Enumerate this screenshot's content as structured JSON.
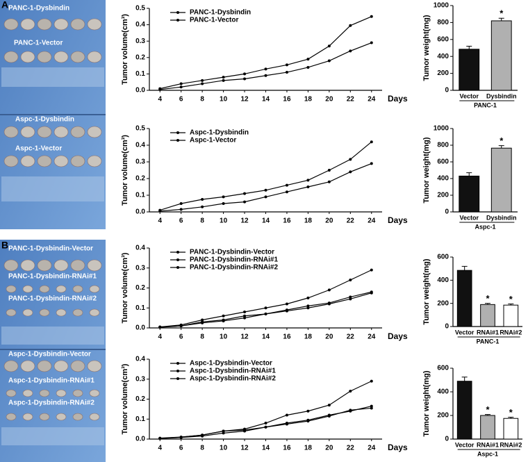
{
  "panel_labels": [
    "A",
    "B"
  ],
  "photos": [
    {
      "labels": [
        "PANC-1-Dysbindin",
        "PANC-1-Vector",
        "Aspc-1-Dysbindin",
        "Aspc-1-Vector"
      ]
    },
    {
      "labels": [
        "PANC-1-Dysbindin-Vector",
        "PANC-1-Dysbindin-RNAi#1",
        "PANC-1-Dysbindin-RNAi#2",
        "Aspc-1-Dysbindin-Vector",
        "Aspc-1-Dysbindin-RNAi#1",
        "Aspc-1-Dysbindin-RNAi#2"
      ]
    }
  ],
  "chart_data": [
    {
      "type": "line",
      "ylabel": "Tumor  volume(cm³)",
      "xlabel": "Days",
      "legend": "upper left",
      "x": [
        4,
        6,
        8,
        10,
        12,
        14,
        16,
        18,
        20,
        22,
        24
      ],
      "xlim": [
        3,
        25
      ],
      "xticks": [
        4,
        6,
        8,
        10,
        12,
        14,
        16,
        18,
        20,
        22,
        24
      ],
      "ylim": [
        0,
        0.5
      ],
      "yticks": [
        {
          "value": 0,
          "label": "0.0"
        },
        0.1,
        0.2,
        0.3,
        0.4,
        0.5
      ],
      "series": [
        {
          "name": "PANC-1-Dysbindin",
          "color": "#000000",
          "values": [
            0.01,
            0.04,
            0.06,
            0.08,
            0.1,
            0.13,
            0.155,
            0.19,
            0.27,
            0.395,
            0.45
          ]
        },
        {
          "name": "PANC-1-Vector",
          "color": "#000000",
          "values": [
            0.005,
            0.02,
            0.04,
            0.06,
            0.07,
            0.09,
            0.11,
            0.14,
            0.18,
            0.24,
            0.29
          ]
        }
      ]
    },
    {
      "type": "bar",
      "ylabel": "Tumor weight(mg)",
      "group_label": "PANC-1",
      "categories": [
        "Vector",
        "Dysbindin"
      ],
      "values": [
        485,
        820
      ],
      "errors": [
        35,
        30
      ],
      "colors": [
        "#111111",
        "#b0b0b0"
      ],
      "significance": [
        null,
        "*"
      ],
      "ylim": [
        0,
        1000
      ],
      "yticks": [
        0,
        200,
        400,
        600,
        800,
        1000
      ]
    },
    {
      "type": "line",
      "ylabel": "Tumor  volume(cm³)",
      "xlabel": "Days",
      "legend": "upper left",
      "x": [
        4,
        6,
        8,
        10,
        12,
        14,
        16,
        18,
        20,
        22,
        24
      ],
      "xlim": [
        3,
        25
      ],
      "xticks": [
        4,
        6,
        8,
        10,
        12,
        14,
        16,
        18,
        20,
        22,
        24
      ],
      "ylim": [
        0,
        0.5
      ],
      "yticks": [
        {
          "value": 0,
          "label": "0.0"
        },
        0.1,
        0.2,
        0.3,
        0.4,
        0.5
      ],
      "series": [
        {
          "name": "Aspc-1-Dysbindin",
          "color": "#000000",
          "values": [
            0.01,
            0.05,
            0.075,
            0.09,
            0.11,
            0.13,
            0.16,
            0.19,
            0.25,
            0.315,
            0.42
          ]
        },
        {
          "name": "Aspc-1-Vector",
          "color": "#000000",
          "values": [
            0.005,
            0.015,
            0.03,
            0.05,
            0.06,
            0.09,
            0.12,
            0.15,
            0.18,
            0.24,
            0.29
          ]
        }
      ]
    },
    {
      "type": "bar",
      "ylabel": "Tumor weight(mg)",
      "group_label": "Aspc-1",
      "categories": [
        "Vector",
        "Dysbindin"
      ],
      "values": [
        430,
        765
      ],
      "errors": [
        40,
        30
      ],
      "colors": [
        "#111111",
        "#b0b0b0"
      ],
      "significance": [
        null,
        "*"
      ],
      "ylim": [
        0,
        1000
      ],
      "yticks": [
        0,
        200,
        400,
        600,
        800,
        1000
      ]
    },
    {
      "type": "line",
      "ylabel": "Tumor  volume(cm³)",
      "xlabel": "Days",
      "legend": "upper left",
      "x": [
        4,
        6,
        8,
        10,
        12,
        14,
        16,
        18,
        20,
        22,
        24
      ],
      "xlim": [
        3,
        25
      ],
      "xticks": [
        4,
        6,
        8,
        10,
        12,
        14,
        16,
        18,
        20,
        22,
        24
      ],
      "ylim": [
        0,
        0.4
      ],
      "yticks": [
        {
          "value": 0,
          "label": "0.0"
        },
        0.1,
        0.2,
        0.3,
        0.4
      ],
      "series": [
        {
          "name": "PANC-1-Dysbindin-Vector",
          "color": "#000000",
          "values": [
            0.005,
            0.015,
            0.04,
            0.06,
            0.08,
            0.1,
            0.12,
            0.15,
            0.19,
            0.24,
            0.29
          ]
        },
        {
          "name": "PANC-1-Dysbindin-RNAi#1",
          "color": "#000000",
          "values": [
            0.005,
            0.01,
            0.03,
            0.04,
            0.06,
            0.07,
            0.09,
            0.11,
            0.125,
            0.155,
            0.18
          ]
        },
        {
          "name": "PANC-1-Dysbindin-RNAi#2",
          "color": "#000000",
          "values": [
            0.003,
            0.01,
            0.025,
            0.035,
            0.05,
            0.07,
            0.085,
            0.1,
            0.12,
            0.145,
            0.175
          ]
        }
      ]
    },
    {
      "type": "bar",
      "ylabel": "Tumor weight(mg)",
      "group_label": "PANC-1",
      "categories": [
        "Vector",
        "RNAi#1",
        "RNAi#2"
      ],
      "values": [
        485,
        190,
        185
      ],
      "errors": [
        35,
        10,
        10
      ],
      "colors": [
        "#111111",
        "#b0b0b0",
        "#ffffff"
      ],
      "significance": [
        null,
        "*",
        "*"
      ],
      "ylim": [
        0,
        600
      ],
      "yticks": [
        0,
        200,
        400,
        600
      ]
    },
    {
      "type": "line",
      "ylabel": "Tumor  volume(cm³)",
      "xlabel": "Days",
      "legend": "upper left",
      "x": [
        4,
        6,
        8,
        10,
        12,
        14,
        16,
        18,
        20,
        22,
        24
      ],
      "xlim": [
        3,
        25
      ],
      "xticks": [
        4,
        6,
        8,
        10,
        12,
        14,
        16,
        18,
        20,
        22,
        24
      ],
      "ylim": [
        0,
        0.4
      ],
      "yticks": [
        {
          "value": 0,
          "label": "0.0"
        },
        0.1,
        0.2,
        0.3,
        0.4
      ],
      "series": [
        {
          "name": "Aspc-1-Dysbindin-Vector",
          "color": "#000000",
          "values": [
            0.005,
            0.01,
            0.02,
            0.04,
            0.05,
            0.08,
            0.12,
            0.14,
            0.17,
            0.24,
            0.29
          ]
        },
        {
          "name": "Aspc-1-Dysbindin-RNAi#1",
          "color": "#000000",
          "values": [
            0.003,
            0.01,
            0.02,
            0.04,
            0.045,
            0.06,
            0.08,
            0.095,
            0.12,
            0.14,
            0.165
          ]
        },
        {
          "name": "Aspc-1-Dysbindin-RNAi#2",
          "color": "#000000",
          "values": [
            0.003,
            0.008,
            0.015,
            0.03,
            0.04,
            0.06,
            0.075,
            0.09,
            0.115,
            0.145,
            0.155
          ]
        }
      ]
    },
    {
      "type": "bar",
      "ylabel": "Tumor weight(mg)",
      "group_label": "Aspc-1",
      "categories": [
        "Vector",
        "RNAi#1",
        "RNAi#2"
      ],
      "values": [
        490,
        200,
        175
      ],
      "errors": [
        35,
        8,
        10
      ],
      "colors": [
        "#111111",
        "#b0b0b0",
        "#ffffff"
      ],
      "significance": [
        null,
        "*",
        "*"
      ],
      "ylim": [
        0,
        600
      ],
      "yticks": [
        0,
        200,
        400,
        600
      ]
    }
  ]
}
